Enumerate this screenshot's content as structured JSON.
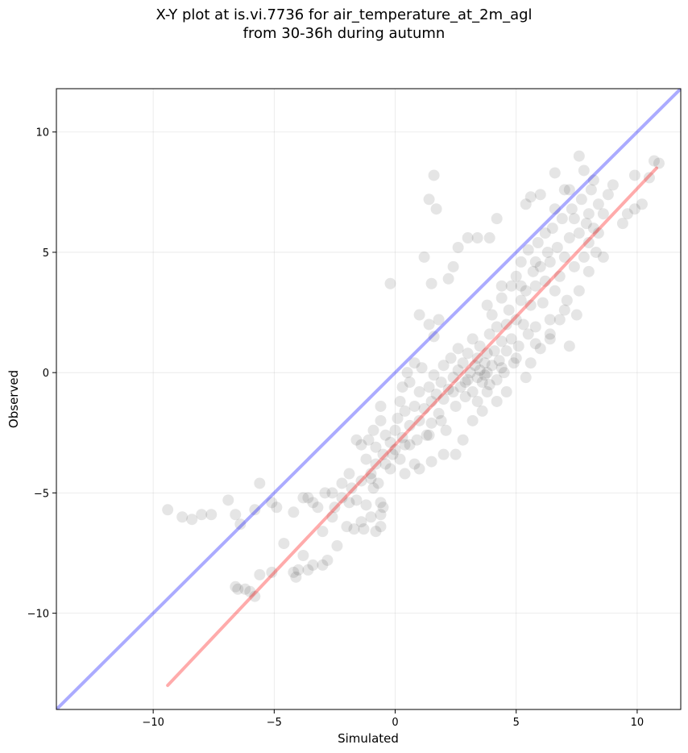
{
  "title_line1": "X-Y plot at is.vi.7736 for air_temperature_at_2m_agl",
  "title_line2": "from 30-36h during autumn",
  "chart_data": {
    "type": "scatter",
    "xlabel": "Simulated",
    "ylabel": "Observed",
    "xlim": [
      -14,
      11.8
    ],
    "ylim": [
      -14,
      11.8
    ],
    "xticks": [
      -10,
      -5,
      0,
      5,
      10
    ],
    "yticks": [
      -10,
      -5,
      0,
      5,
      10
    ],
    "xtick_labels": [
      "−10",
      "−5",
      "0",
      "5",
      "10"
    ],
    "ytick_labels": [
      "−10",
      "−5",
      "0",
      "5",
      "10"
    ],
    "grid": true,
    "point_color": "#000000",
    "point_alpha": 0.1,
    "reference_line": {
      "kind": "y=x",
      "color": "#0000ff",
      "x": [
        -14,
        11.8
      ],
      "y": [
        -14,
        11.8
      ]
    },
    "fit_line": {
      "kind": "linear fit",
      "color": "#ff0000",
      "x": [
        -9.4,
        10.8
      ],
      "y": [
        -13.0,
        8.5
      ]
    },
    "points": [
      [
        -9.4,
        -5.7
      ],
      [
        -8.8,
        -6.0
      ],
      [
        -8.4,
        -6.1
      ],
      [
        -8.0,
        -5.9
      ],
      [
        -7.6,
        -5.9
      ],
      [
        -6.9,
        -5.3
      ],
      [
        -6.6,
        -5.9
      ],
      [
        -6.4,
        -6.3
      ],
      [
        -5.8,
        -5.7
      ],
      [
        -5.6,
        -4.6
      ],
      [
        -5.1,
        -5.4
      ],
      [
        -4.9,
        -5.6
      ],
      [
        -6.6,
        -8.9
      ],
      [
        -6.5,
        -9.0
      ],
      [
        -6.2,
        -9.0
      ],
      [
        -6.0,
        -9.1
      ],
      [
        -5.8,
        -9.3
      ],
      [
        -5.6,
        -8.4
      ],
      [
        -5.1,
        -8.3
      ],
      [
        -4.6,
        -7.1
      ],
      [
        -4.2,
        -8.3
      ],
      [
        -4.1,
        -8.5
      ],
      [
        -4.0,
        -8.2
      ],
      [
        -3.6,
        -8.2
      ],
      [
        -3.4,
        -8.0
      ],
      [
        -3.0,
        -8.0
      ],
      [
        -2.8,
        -7.8
      ],
      [
        -2.4,
        -7.2
      ],
      [
        -4.2,
        -5.8
      ],
      [
        -3.6,
        -5.2
      ],
      [
        -3.2,
        -5.6
      ],
      [
        -2.9,
        -5.0
      ],
      [
        -2.5,
        -5.6
      ],
      [
        -2.2,
        -5.2
      ],
      [
        -1.9,
        -5.4
      ],
      [
        -1.6,
        -5.3
      ],
      [
        -1.2,
        -5.5
      ],
      [
        -0.6,
        -5.4
      ],
      [
        -0.6,
        -5.9
      ],
      [
        -0.6,
        -6.4
      ],
      [
        -2.2,
        -4.6
      ],
      [
        -1.9,
        -4.2
      ],
      [
        -1.4,
        -4.5
      ],
      [
        -1.0,
        -4.4
      ],
      [
        -0.9,
        -4.8
      ],
      [
        -0.7,
        -4.6
      ],
      [
        -0.8,
        -6.6
      ],
      [
        -1.3,
        -6.5
      ],
      [
        -1.7,
        -6.5
      ],
      [
        -2.0,
        -6.4
      ],
      [
        -1.2,
        -3.6
      ],
      [
        -1.1,
        -2.8
      ],
      [
        -0.8,
        -3.1
      ],
      [
        -0.9,
        -2.4
      ],
      [
        -0.6,
        -2.0
      ],
      [
        -0.5,
        -3.4
      ],
      [
        -0.4,
        -2.6
      ],
      [
        -0.2,
        -2.9
      ],
      [
        0.0,
        -3.2
      ],
      [
        0.0,
        -2.4
      ],
      [
        0.1,
        -1.9
      ],
      [
        0.2,
        -3.6
      ],
      [
        0.3,
        -2.7
      ],
      [
        0.4,
        -1.6
      ],
      [
        0.6,
        -3.0
      ],
      [
        0.6,
        -2.2
      ],
      [
        0.8,
        -1.4
      ],
      [
        0.8,
        -3.8
      ],
      [
        1.0,
        -2.0
      ],
      [
        1.0,
        -0.8
      ],
      [
        1.2,
        -1.5
      ],
      [
        1.3,
        -2.6
      ],
      [
        1.4,
        -0.6
      ],
      [
        1.5,
        -1.2
      ],
      [
        1.5,
        -2.1
      ],
      [
        1.6,
        -0.1
      ],
      [
        1.7,
        -0.9
      ],
      [
        1.8,
        -1.7
      ],
      [
        1.9,
        -0.4
      ],
      [
        2.0,
        -1.1
      ],
      [
        2.0,
        0.3
      ],
      [
        2.1,
        -2.4
      ],
      [
        2.2,
        -0.7
      ],
      [
        2.3,
        0.6
      ],
      [
        2.4,
        -0.2
      ],
      [
        2.5,
        -1.4
      ],
      [
        2.6,
        0.1
      ],
      [
        2.6,
        1.0
      ],
      [
        2.7,
        -0.6
      ],
      [
        2.8,
        0.4
      ],
      [
        2.9,
        -1.0
      ],
      [
        3.0,
        0.8
      ],
      [
        3.0,
        -0.3
      ],
      [
        3.1,
        0.0
      ],
      [
        3.2,
        1.4
      ],
      [
        3.2,
        -0.8
      ],
      [
        3.3,
        0.3
      ],
      [
        3.4,
        -0.2
      ],
      [
        3.4,
        0.6
      ],
      [
        3.5,
        0.1
      ],
      [
        3.5,
        1.1
      ],
      [
        3.6,
        -0.4
      ],
      [
        3.7,
        0.4
      ],
      [
        3.7,
        -0.1
      ],
      [
        3.8,
        0.8
      ],
      [
        3.8,
        0.0
      ],
      [
        3.9,
        -0.5
      ],
      [
        3.9,
        1.6
      ],
      [
        4.0,
        0.3
      ],
      [
        4.0,
        2.4
      ],
      [
        4.1,
        0.9
      ],
      [
        4.2,
        -0.3
      ],
      [
        4.2,
        1.9
      ],
      [
        4.3,
        0.5
      ],
      [
        4.4,
        1.3
      ],
      [
        4.4,
        3.1
      ],
      [
        4.5,
        0.0
      ],
      [
        4.6,
        2.0
      ],
      [
        4.6,
        0.9
      ],
      [
        4.7,
        2.6
      ],
      [
        4.8,
        1.4
      ],
      [
        4.8,
        3.6
      ],
      [
        4.9,
        0.4
      ],
      [
        5.0,
        2.2
      ],
      [
        5.0,
        4.0
      ],
      [
        5.1,
        1.1
      ],
      [
        5.2,
        3.0
      ],
      [
        5.2,
        4.6
      ],
      [
        5.3,
        2.0
      ],
      [
        5.4,
        3.4
      ],
      [
        5.5,
        1.6
      ],
      [
        5.5,
        5.1
      ],
      [
        5.6,
        2.8
      ],
      [
        5.7,
        4.2
      ],
      [
        5.8,
        3.6
      ],
      [
        5.8,
        1.9
      ],
      [
        5.9,
        5.4
      ],
      [
        6.0,
        4.4
      ],
      [
        6.1,
        2.9
      ],
      [
        6.2,
        3.8
      ],
      [
        6.3,
        5.0
      ],
      [
        6.4,
        1.4
      ],
      [
        6.4,
        4.6
      ],
      [
        6.5,
        6.0
      ],
      [
        6.6,
        3.4
      ],
      [
        6.7,
        5.2
      ],
      [
        6.8,
        4.0
      ],
      [
        6.9,
        6.4
      ],
      [
        7.0,
        4.8
      ],
      [
        7.1,
        3.0
      ],
      [
        7.2,
        5.6
      ],
      [
        7.3,
        6.8
      ],
      [
        7.4,
        4.4
      ],
      [
        7.5,
        2.4
      ],
      [
        7.6,
        5.8
      ],
      [
        7.7,
        7.2
      ],
      [
        7.8,
        4.8
      ],
      [
        7.9,
        6.2
      ],
      [
        8.0,
        5.4
      ],
      [
        8.1,
        7.6
      ],
      [
        8.2,
        6.0
      ],
      [
        8.3,
        5.0
      ],
      [
        8.4,
        7.0
      ],
      [
        8.6,
        6.6
      ],
      [
        8.8,
        7.4
      ],
      [
        9.0,
        7.8
      ],
      [
        9.4,
        6.2
      ],
      [
        9.6,
        6.6
      ],
      [
        9.9,
        6.8
      ],
      [
        10.2,
        7.0
      ],
      [
        10.5,
        8.1
      ],
      [
        10.7,
        8.8
      ],
      [
        10.9,
        8.7
      ],
      [
        9.9,
        8.2
      ],
      [
        8.2,
        8.0
      ],
      [
        7.8,
        8.4
      ],
      [
        7.6,
        9.0
      ],
      [
        7.0,
        7.6
      ],
      [
        6.6,
        8.3
      ],
      [
        6.0,
        7.4
      ],
      [
        5.4,
        7.0
      ],
      [
        5.6,
        7.3
      ],
      [
        4.2,
        6.4
      ],
      [
        3.9,
        5.6
      ],
      [
        3.4,
        5.6
      ],
      [
        3.0,
        5.6
      ],
      [
        2.6,
        5.2
      ],
      [
        2.4,
        4.4
      ],
      [
        2.2,
        3.9
      ],
      [
        1.8,
        2.2
      ],
      [
        1.6,
        1.5
      ],
      [
        1.4,
        2.0
      ],
      [
        1.2,
        4.8
      ],
      [
        1.0,
        2.4
      ],
      [
        1.5,
        3.7
      ],
      [
        1.4,
        7.2
      ],
      [
        1.6,
        8.2
      ],
      [
        1.7,
        6.8
      ],
      [
        -0.2,
        3.7
      ],
      [
        0.5,
        0.0
      ],
      [
        0.3,
        -0.6
      ],
      [
        0.8,
        0.4
      ],
      [
        5.4,
        -0.2
      ],
      [
        5.6,
        0.4
      ],
      [
        6.0,
        1.0
      ],
      [
        6.4,
        1.6
      ],
      [
        7.2,
        1.1
      ],
      [
        6.8,
        2.2
      ],
      [
        4.6,
        -0.8
      ],
      [
        4.2,
        -1.2
      ],
      [
        3.6,
        -1.6
      ],
      [
        3.2,
        -2.0
      ],
      [
        2.8,
        -2.8
      ],
      [
        2.5,
        -3.4
      ],
      [
        2.0,
        -3.4
      ],
      [
        1.5,
        -3.7
      ],
      [
        1.0,
        -4.0
      ],
      [
        0.4,
        -4.2
      ],
      [
        -0.2,
        -4.0
      ],
      [
        -0.8,
        -3.8
      ],
      [
        -1.4,
        -3.0
      ],
      [
        -1.6,
        -2.8
      ],
      [
        -0.6,
        -1.4
      ],
      [
        0.2,
        -1.2
      ],
      [
        0.6,
        -0.4
      ],
      [
        1.1,
        0.2
      ],
      [
        3.8,
        2.8
      ],
      [
        4.4,
        3.6
      ],
      [
        5.2,
        3.6
      ],
      [
        5.8,
        4.6
      ],
      [
        6.2,
        5.8
      ],
      [
        6.6,
        6.8
      ],
      [
        7.2,
        7.6
      ],
      [
        7.4,
        6.4
      ],
      [
        8.0,
        6.6
      ],
      [
        8.4,
        5.8
      ],
      [
        8.6,
        4.8
      ],
      [
        8.0,
        4.2
      ],
      [
        7.6,
        3.4
      ],
      [
        7.0,
        2.6
      ],
      [
        6.4,
        2.2
      ],
      [
        5.8,
        1.2
      ],
      [
        5.0,
        0.6
      ],
      [
        4.4,
        0.2
      ],
      [
        3.8,
        -0.8
      ],
      [
        3.4,
        -1.2
      ],
      [
        2.9,
        -0.4
      ],
      [
        2.4,
        -0.8
      ],
      [
        1.9,
        -2.0
      ],
      [
        1.4,
        -2.6
      ],
      [
        0.9,
        -2.8
      ],
      [
        0.4,
        -3.0
      ],
      [
        -0.1,
        -3.4
      ],
      [
        -0.4,
        -3.8
      ],
      [
        -1.0,
        -4.2
      ],
      [
        -1.8,
        -4.8
      ],
      [
        -2.6,
        -5.0
      ],
      [
        -3.4,
        -5.4
      ],
      [
        -3.8,
        -5.2
      ],
      [
        -2.6,
        -6.0
      ],
      [
        -1.4,
        -6.2
      ],
      [
        -1.0,
        -6.0
      ],
      [
        -0.5,
        -5.6
      ],
      [
        -3.0,
        -6.6
      ],
      [
        -3.8,
        -7.6
      ]
    ]
  }
}
